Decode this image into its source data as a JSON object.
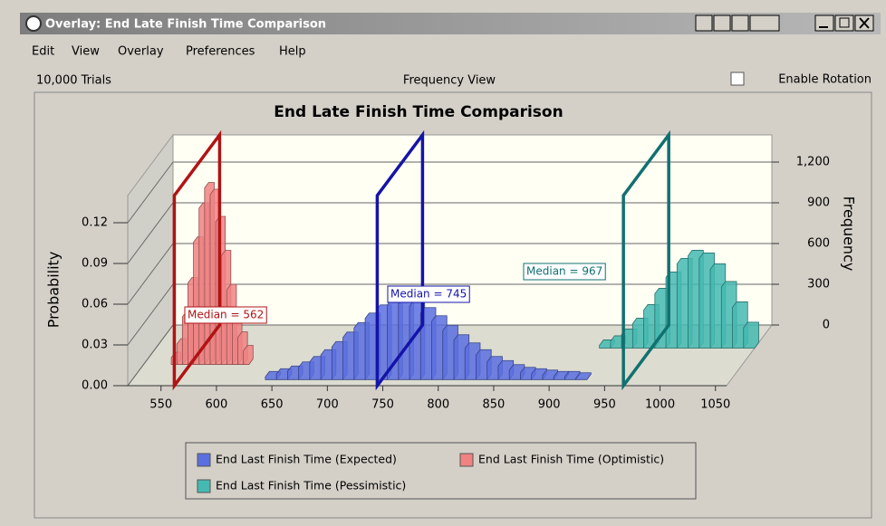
{
  "window": {
    "title": "Overlay: End Late Finish Time Comparison",
    "menu": [
      "Edit",
      "View",
      "Overlay",
      "Preferences",
      "Help"
    ],
    "trials": "10,000 Trials",
    "view": "Frequency View",
    "rotation_label": "Enable Rotation"
  },
  "chart_data": {
    "type": "histogram",
    "title": "End Late Finish Time Comparison",
    "ylabel": "Probability",
    "y2label": "Frequency",
    "xlim": [
      520,
      1060
    ],
    "xticks": [
      550,
      600,
      650,
      700,
      750,
      800,
      850,
      900,
      950,
      1000,
      1050
    ],
    "ylim": [
      0,
      0.14
    ],
    "yticks": [
      {
        "value": 0,
        "label": "0.00"
      },
      0.03,
      0.06,
      0.09,
      0.12
    ],
    "y2lim": [
      0,
      1400
    ],
    "y2ticks": [
      0,
      300,
      600,
      900,
      {
        "value": 1200,
        "label": "1,200"
      }
    ],
    "grid": true,
    "series": [
      {
        "name": "End Last Finish Time (Expected)",
        "color": "#5b6fe0",
        "median": 745,
        "median_label": "Median = 745",
        "median_color": "#1414a8",
        "bins": [
          640,
          650,
          660,
          670,
          680,
          690,
          700,
          710,
          720,
          730,
          740,
          750,
          760,
          770,
          780,
          790,
          800,
          810,
          820,
          830,
          840,
          850,
          860,
          870,
          880,
          890,
          900,
          910,
          920,
          930
        ],
        "values": [
          0.002,
          0.004,
          0.006,
          0.009,
          0.013,
          0.018,
          0.024,
          0.031,
          0.038,
          0.045,
          0.051,
          0.055,
          0.056,
          0.054,
          0.049,
          0.043,
          0.036,
          0.029,
          0.023,
          0.018,
          0.013,
          0.01,
          0.007,
          0.005,
          0.004,
          0.003,
          0.002,
          0.002,
          0.001
        ]
      },
      {
        "name": "End Last Finish Time (Optimistic)",
        "color": "#f08282",
        "median": 562,
        "median_label": "Median = 562",
        "median_color": "#b01414",
        "bins": [
          545,
          550,
          555,
          560,
          565,
          570,
          575,
          580,
          585,
          590,
          595,
          600,
          605,
          610,
          615
        ],
        "values": [
          0.005,
          0.015,
          0.035,
          0.06,
          0.09,
          0.115,
          0.13,
          0.125,
          0.105,
          0.08,
          0.055,
          0.035,
          0.02,
          0.01
        ]
      },
      {
        "name": "End Last Finish Time (Pessimistic)",
        "color": "#44bab2",
        "median": 967,
        "median_label": "Median = 967",
        "median_color": "#117070",
        "bins": [
          920,
          930,
          940,
          950,
          960,
          970,
          980,
          990,
          1000,
          1010,
          1020,
          1030,
          1040,
          1050,
          1060
        ],
        "values": [
          0.002,
          0.005,
          0.01,
          0.018,
          0.028,
          0.04,
          0.052,
          0.062,
          0.068,
          0.066,
          0.058,
          0.045,
          0.03,
          0.015
        ]
      }
    ]
  }
}
